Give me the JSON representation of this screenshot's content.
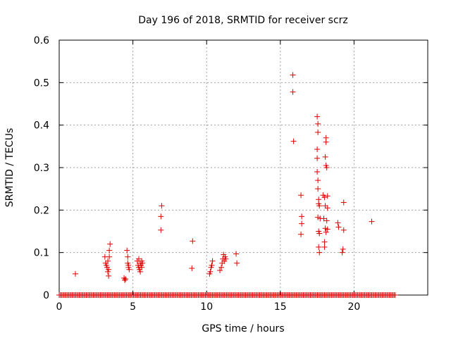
{
  "chart_data": {
    "type": "scatter",
    "title": "Day 196 of 2018, SRMTID for receiver scrz",
    "xlabel": "GPS time / hours",
    "ylabel": "SRMTID / TECUs",
    "xlim": [
      0,
      25
    ],
    "ylim": [
      0,
      0.6
    ],
    "xticks": [
      0,
      5,
      10,
      15,
      20
    ],
    "xtick_labels": [
      "0",
      "5",
      "10",
      "15",
      "20"
    ],
    "yticks": [
      0,
      0.1,
      0.2,
      0.3,
      0.4,
      0.5,
      0.6
    ],
    "ytick_labels": [
      "0",
      "0.1",
      "0.2",
      "0.3",
      "0.4",
      "0.5",
      "0.6"
    ],
    "grid": true,
    "marker": "+",
    "color": "#e00000",
    "zero_baseline": {
      "x_start": 0.0,
      "x_end": 22.8,
      "step": 0.08,
      "y": 0
    },
    "series": [
      {
        "name": "SRMTID",
        "points": [
          [
            1.1,
            0.05
          ],
          [
            3.1,
            0.09
          ],
          [
            3.15,
            0.075
          ],
          [
            3.2,
            0.07
          ],
          [
            3.25,
            0.065
          ],
          [
            3.3,
            0.08
          ],
          [
            3.35,
            0.06
          ],
          [
            3.35,
            0.045
          ],
          [
            3.4,
            0.09
          ],
          [
            3.4,
            0.105
          ],
          [
            3.45,
            0.12
          ],
          [
            3.3,
            0.055
          ],
          [
            4.4,
            0.04
          ],
          [
            4.45,
            0.035
          ],
          [
            4.5,
            0.038
          ],
          [
            4.6,
            0.105
          ],
          [
            4.65,
            0.09
          ],
          [
            4.65,
            0.075
          ],
          [
            4.7,
            0.07
          ],
          [
            4.7,
            0.065
          ],
          [
            4.75,
            0.06
          ],
          [
            5.3,
            0.08
          ],
          [
            5.35,
            0.07
          ],
          [
            5.4,
            0.065
          ],
          [
            5.4,
            0.085
          ],
          [
            5.45,
            0.06
          ],
          [
            5.5,
            0.075
          ],
          [
            5.5,
            0.055
          ],
          [
            5.55,
            0.07
          ],
          [
            5.6,
            0.065
          ],
          [
            5.6,
            0.08
          ],
          [
            5.65,
            0.075
          ],
          [
            6.9,
            0.185
          ],
          [
            6.9,
            0.153
          ],
          [
            6.95,
            0.21
          ],
          [
            9.0,
            0.063
          ],
          [
            9.05,
            0.127
          ],
          [
            10.2,
            0.05
          ],
          [
            10.25,
            0.055
          ],
          [
            10.3,
            0.065
          ],
          [
            10.35,
            0.07
          ],
          [
            10.4,
            0.08
          ],
          [
            10.9,
            0.058
          ],
          [
            11.0,
            0.065
          ],
          [
            11.05,
            0.075
          ],
          [
            11.1,
            0.085
          ],
          [
            11.15,
            0.095
          ],
          [
            11.2,
            0.08
          ],
          [
            11.25,
            0.09
          ],
          [
            11.3,
            0.085
          ],
          [
            12.0,
            0.097
          ],
          [
            12.05,
            0.075
          ],
          [
            15.85,
            0.518
          ],
          [
            15.85,
            0.478
          ],
          [
            15.9,
            0.362
          ],
          [
            16.4,
            0.235
          ],
          [
            16.45,
            0.185
          ],
          [
            16.45,
            0.168
          ],
          [
            16.4,
            0.143
          ],
          [
            17.5,
            0.42
          ],
          [
            17.55,
            0.403
          ],
          [
            17.55,
            0.383
          ],
          [
            17.5,
            0.343
          ],
          [
            17.5,
            0.322
          ],
          [
            17.5,
            0.29
          ],
          [
            17.55,
            0.27
          ],
          [
            17.55,
            0.25
          ],
          [
            17.6,
            0.225
          ],
          [
            17.65,
            0.21
          ],
          [
            17.6,
            0.215
          ],
          [
            17.55,
            0.183
          ],
          [
            17.6,
            0.15
          ],
          [
            17.65,
            0.145
          ],
          [
            17.6,
            0.113
          ],
          [
            17.65,
            0.1
          ],
          [
            17.7,
            0.18
          ],
          [
            17.9,
            0.235
          ],
          [
            18.0,
            0.23
          ],
          [
            18.05,
            0.21
          ],
          [
            18.1,
            0.37
          ],
          [
            18.1,
            0.36
          ],
          [
            18.05,
            0.325
          ],
          [
            18.1,
            0.305
          ],
          [
            18.15,
            0.3
          ],
          [
            17.95,
            0.18
          ],
          [
            18.0,
            0.125
          ],
          [
            18.0,
            0.113
          ],
          [
            18.05,
            0.157
          ],
          [
            18.1,
            0.148
          ],
          [
            18.15,
            0.175
          ],
          [
            18.2,
            0.155
          ],
          [
            18.2,
            0.233
          ],
          [
            18.2,
            0.205
          ],
          [
            18.9,
            0.17
          ],
          [
            18.95,
            0.16
          ],
          [
            19.2,
            0.1
          ],
          [
            19.25,
            0.108
          ],
          [
            19.3,
            0.153
          ],
          [
            19.3,
            0.218
          ],
          [
            21.2,
            0.173
          ]
        ]
      }
    ]
  }
}
